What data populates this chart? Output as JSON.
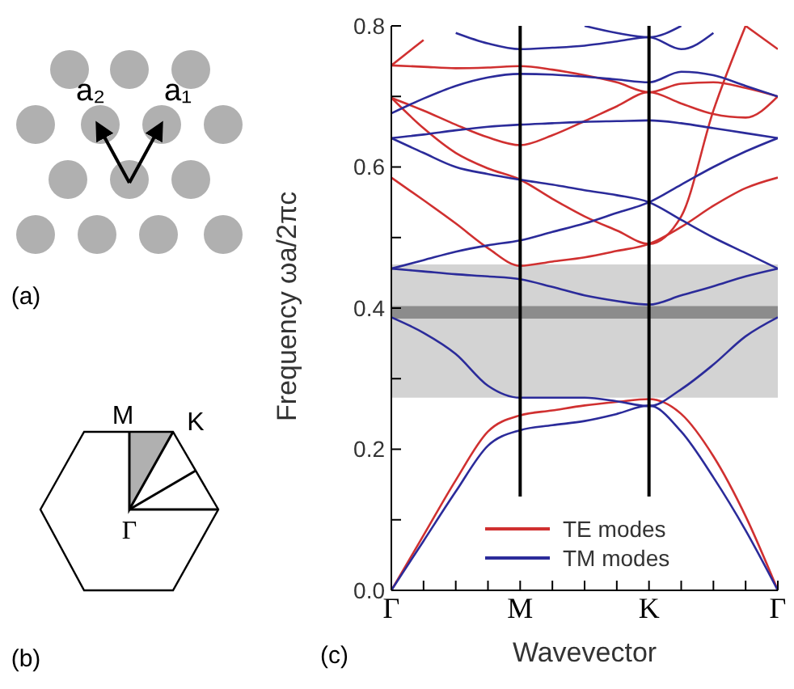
{
  "chart_data": {
    "type": "line",
    "xlabel": "Wavevector",
    "ylabel": "Frequency ωa/2πc",
    "categories": [
      "Γ",
      null,
      null,
      null,
      "M",
      null,
      null,
      null,
      "K",
      null,
      null,
      null,
      "Γ"
    ],
    "ylim": [
      0,
      0.8
    ],
    "yticks": [
      {
        "value": 0,
        "label": "0.0"
      },
      {
        "value": 0.1,
        "label": null
      },
      {
        "value": 0.2,
        "label": "0.2"
      },
      {
        "value": 0.3,
        "label": null
      },
      {
        "value": 0.4,
        "label": "0.4"
      },
      {
        "value": 0.5,
        "label": null
      },
      {
        "value": 0.6,
        "label": "0.6"
      },
      {
        "value": 0.7,
        "label": null
      },
      {
        "value": 0.8,
        "label": "0.8"
      }
    ],
    "legend": "bottom",
    "bands": [
      {
        "axis": "y",
        "from": 0.273,
        "to": 0.462,
        "color": "#d3d3d3"
      },
      {
        "axis": "y",
        "from": 0.385,
        "to": 0.403,
        "color": "#8c8c8c"
      }
    ],
    "ref_lines": [
      {
        "axis": "x",
        "value": "M",
        "color": "#000000"
      },
      {
        "axis": "x",
        "value": "K",
        "color": "#000000"
      }
    ],
    "series": [
      {
        "name": "TE modes",
        "color": "#d03030",
        "values": [
          0,
          0.078,
          0.156,
          0.225,
          0.248,
          0.255,
          0.262,
          0.267,
          0.271,
          0.25,
          0.19,
          0.105,
          0
        ]
      },
      {
        "color": "#d03030",
        "values": [
          0.585,
          0.553,
          0.52,
          0.485,
          0.46,
          0.466,
          0.472,
          0.481,
          0.491,
          0.515,
          0.545,
          0.57,
          0.585
        ]
      },
      {
        "color": "#d03030",
        "values": [
          0.698,
          0.68,
          0.66,
          0.642,
          0.631,
          0.645,
          0.665,
          0.686,
          0.706,
          0.69,
          0.675,
          0.67,
          0.7
        ]
      },
      {
        "color": "#d03030",
        "values": [
          0.744,
          0.742,
          0.74,
          0.741,
          0.743,
          0.738,
          0.73,
          0.72,
          0.706,
          0.718,
          0.72,
          0.712,
          0.7
        ]
      },
      {
        "color": "#d03030",
        "values": [
          0.698,
          0.655,
          0.62,
          0.598,
          0.582,
          0.555,
          0.53,
          0.51,
          0.491,
          0.53,
          0.68,
          0.8,
          null
        ]
      },
      {
        "color": "#d03030",
        "values": [
          0.744,
          0.78,
          null,
          null,
          null,
          null,
          null,
          null,
          null,
          null,
          null,
          null,
          null
        ]
      },
      {
        "color": "#d03030",
        "values": [
          null,
          null,
          null,
          null,
          null,
          null,
          null,
          null,
          null,
          null,
          null,
          0.8,
          0.767
        ]
      },
      {
        "name": "TM modes",
        "color": "#2b2b9a",
        "values": [
          0,
          0.07,
          0.14,
          0.205,
          0.227,
          0.234,
          0.24,
          0.25,
          0.262,
          0.225,
          0.16,
          0.085,
          0
        ]
      },
      {
        "color": "#2b2b9a",
        "values": [
          0.387,
          0.365,
          0.335,
          0.29,
          0.273,
          0.273,
          0.273,
          0.268,
          0.261,
          0.285,
          0.32,
          0.36,
          0.387
        ]
      },
      {
        "color": "#2b2b9a",
        "values": [
          0.456,
          0.452,
          0.448,
          0.445,
          0.441,
          0.43,
          0.418,
          0.41,
          0.405,
          0.418,
          0.431,
          0.445,
          0.456
        ]
      },
      {
        "color": "#2b2b9a",
        "values": [
          0.456,
          0.468,
          0.48,
          0.489,
          0.496,
          0.508,
          0.52,
          0.535,
          0.55,
          0.575,
          0.6,
          0.622,
          0.641
        ]
      },
      {
        "color": "#2b2b9a",
        "values": [
          0.641,
          0.62,
          0.6,
          0.59,
          0.582,
          0.575,
          0.567,
          0.56,
          0.55,
          0.525,
          0.5,
          0.478,
          0.456
        ]
      },
      {
        "color": "#2b2b9a",
        "values": [
          0.641,
          0.646,
          0.652,
          0.657,
          0.66,
          0.662,
          0.664,
          0.665,
          0.666,
          0.662,
          0.655,
          0.648,
          0.641
        ]
      },
      {
        "color": "#2b2b9a",
        "values": [
          0.676,
          0.697,
          0.715,
          0.727,
          0.732,
          0.731,
          0.728,
          0.724,
          0.72,
          0.735,
          0.73,
          0.715,
          0.7
        ]
      },
      {
        "color": "#2b2b9a",
        "values": [
          null,
          null,
          0.79,
          0.775,
          0.767,
          0.769,
          0.772,
          0.778,
          0.784,
          0.767,
          0.79,
          null,
          null
        ]
      },
      {
        "color": "#2b2b9a",
        "values": [
          null,
          null,
          null,
          null,
          null,
          null,
          0.8,
          0.79,
          0.784,
          0.8,
          null,
          null,
          null
        ]
      }
    ],
    "annotations": [
      "a₂",
      "a₁",
      "(a)",
      "M",
      "K",
      "Γ",
      "(b)",
      "(c)"
    ]
  }
}
